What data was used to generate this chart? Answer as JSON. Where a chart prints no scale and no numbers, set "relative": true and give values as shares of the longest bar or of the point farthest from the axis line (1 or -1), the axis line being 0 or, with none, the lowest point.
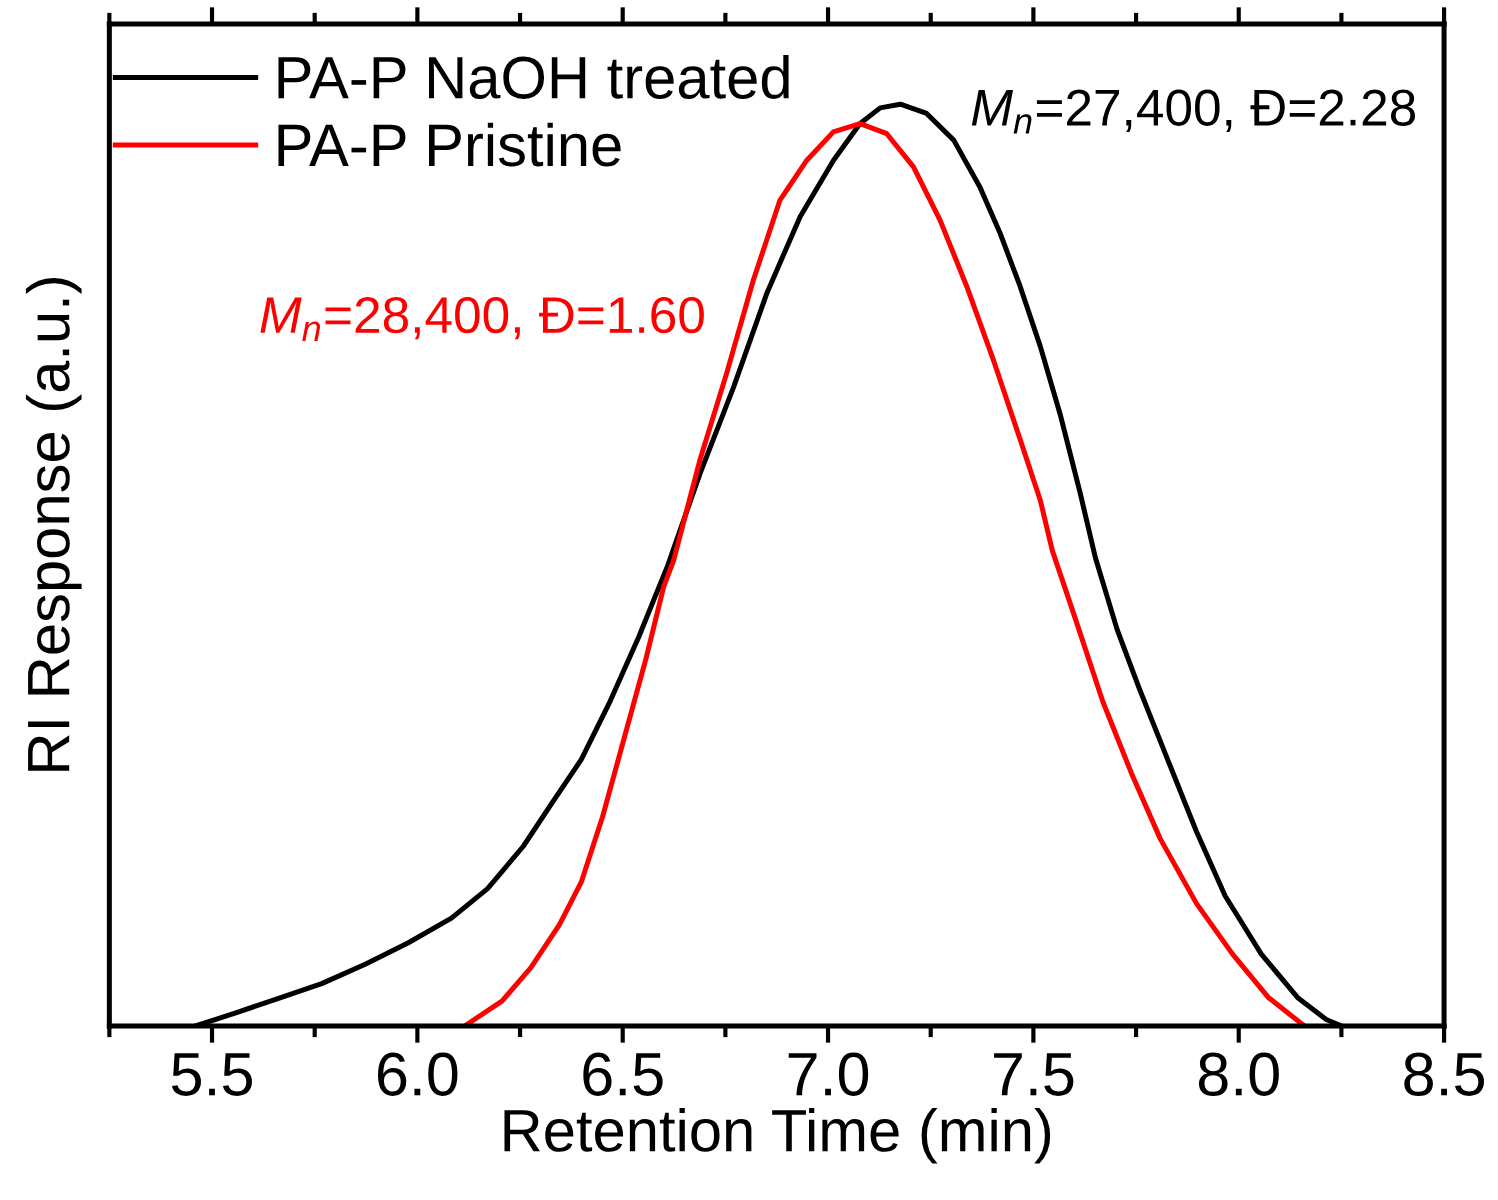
{
  "chart_data": {
    "type": "line",
    "xlabel": "Retention Time (min)",
    "ylabel": "RI Response (a.u.)",
    "relative": true,
    "xlim": [
      5.25,
      8.5
    ],
    "xticks": [
      5.5,
      {
        "value": 6,
        "label": "6.0"
      },
      6.5,
      {
        "value": 7,
        "label": "7.0"
      },
      7.5,
      {
        "value": 8,
        "label": "8.0"
      },
      8.5
    ],
    "legend": "top left",
    "series": [
      {
        "name": "PA-P NaOH treated",
        "color": "#000000",
        "x": [
          5.46,
          5.556,
          5.662,
          5.767,
          5.873,
          5.977,
          6.083,
          6.171,
          6.258,
          6.328,
          6.399,
          6.469,
          6.539,
          6.61,
          6.688,
          6.77,
          6.851,
          6.932,
          7.013,
          7.078,
          7.127,
          7.176,
          7.24,
          7.306,
          7.37,
          7.419,
          7.468,
          7.517,
          7.565,
          7.614,
          7.651,
          7.704,
          7.757,
          7.827,
          7.897,
          7.967,
          8.055,
          8.143,
          8.213,
          8.251
        ],
        "values": [
          0,
          0.014,
          0.03,
          0.046,
          0.067,
          0.09,
          0.117,
          0.149,
          0.195,
          0.242,
          0.289,
          0.352,
          0.422,
          0.5,
          0.599,
          0.693,
          0.795,
          0.878,
          0.939,
          0.979,
          0.996,
          1.0,
          0.99,
          0.961,
          0.91,
          0.86,
          0.802,
          0.737,
          0.664,
          0.578,
          0.508,
          0.43,
          0.367,
          0.289,
          0.211,
          0.141,
          0.078,
          0.031,
          0.007,
          0
        ]
      },
      {
        "name": "PA-P Pristine",
        "color": "#ff0000",
        "x": [
          6.115,
          6.206,
          6.276,
          6.346,
          6.399,
          6.451,
          6.504,
          6.557,
          6.6,
          6.624,
          6.662,
          6.688,
          6.753,
          6.818,
          6.883,
          6.948,
          7.013,
          7.078,
          7.143,
          7.208,
          7.273,
          7.338,
          7.403,
          7.468,
          7.517,
          7.546,
          7.599,
          7.669,
          7.739,
          7.809,
          7.897,
          7.985,
          8.072,
          8.16
        ],
        "values": [
          0,
          0.027,
          0.063,
          0.11,
          0.156,
          0.227,
          0.313,
          0.399,
          0.477,
          0.505,
          0.57,
          0.614,
          0.708,
          0.809,
          0.896,
          0.939,
          0.97,
          0.979,
          0.968,
          0.932,
          0.874,
          0.802,
          0.722,
          0.636,
          0.57,
          0.516,
          0.446,
          0.352,
          0.274,
          0.203,
          0.133,
          0.078,
          0.031,
          0
        ]
      }
    ],
    "annotations": [
      "M$_{n}$=27,400, Đ=2.28",
      "M$_{n}$=28,400, Đ=1.60"
    ]
  }
}
